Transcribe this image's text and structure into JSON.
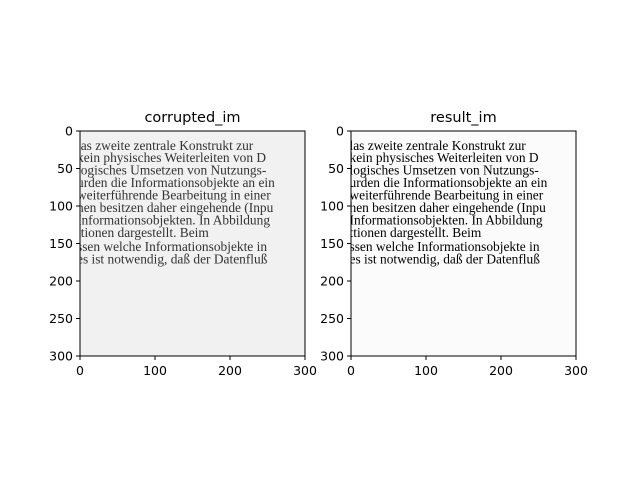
{
  "chart_data": [
    {
      "type": "image",
      "title": "corrupted_im",
      "xticks": [
        0,
        100,
        200,
        300
      ],
      "yticks": [
        0,
        50,
        100,
        150,
        200,
        250,
        300
      ],
      "xlim": [
        0,
        300
      ],
      "ylim": [
        300,
        0
      ],
      "background": "#f1f1f1",
      "text_color": "#333333",
      "lines": [
        "las zweite zentrale Konstrukt zur",
        "kein physisches Weiterleiten von D",
        "logisches Umsetzen von Nutzungs-",
        "urden die Informationsobjekte an ein",
        "weiterführende Bearbeitung in einer",
        "hen besitzen daher eingehende (Inpu",
        "Informationsobjekten.  In Abbildung",
        "ttionen dargestellt.  Beim",
        "ssen welche Informationsobjekte in",
        "es ist notwendig, daß der Datenfluß"
      ]
    },
    {
      "type": "image",
      "title": "result_im",
      "xticks": [
        0,
        100,
        200,
        300
      ],
      "yticks": [
        0,
        50,
        100,
        150,
        200,
        250,
        300
      ],
      "xlim": [
        0,
        300
      ],
      "ylim": [
        300,
        0
      ],
      "background": "#fbfbfb",
      "text_color": "#000000",
      "lines": [
        "las zweite zentrale Konstrukt zur",
        "kein physisches Weiterleiten von D",
        "logisches Umsetzen von Nutzungs-",
        "urden die Informationsobjekte an ein",
        "weiterführende Bearbeitung in einer",
        "hen besitzen daher eingehende (Inpu",
        "Informationsobjekten.  In Abbildung",
        "ttionen dargestellt.  Beim",
        "ssen welche Informationsobjekte in",
        "es ist notwendig, daß der Datenfluß"
      ]
    }
  ]
}
